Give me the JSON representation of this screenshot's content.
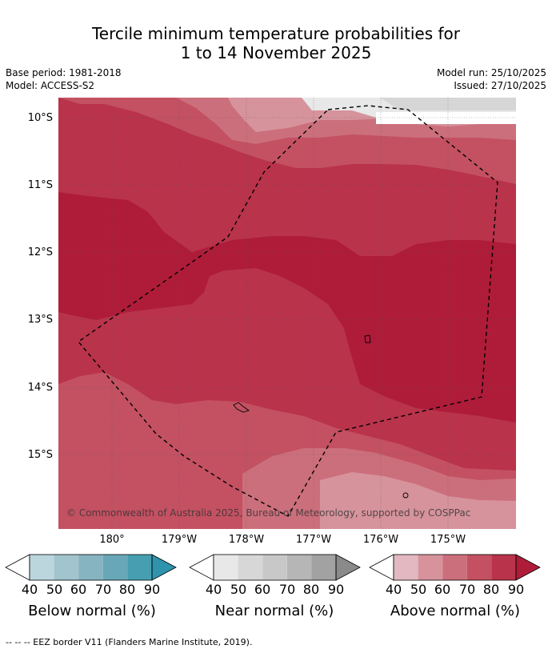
{
  "title": {
    "line1": "Tercile minimum temperature probabilities for",
    "line2": "1 to 14 November 2025"
  },
  "meta": {
    "base_period": "Base period: 1981-2018",
    "model": "Model: ACCESS-S2",
    "model_run": "Model run: 25/10/2025",
    "issued": "Issued: 27/10/2025"
  },
  "map": {
    "lat_labels": [
      "10°S",
      "11°S",
      "12°S",
      "13°S",
      "14°S",
      "15°S"
    ],
    "lon_labels": [
      "180°",
      "179°W",
      "178°W",
      "177°W",
      "176°W",
      "175°W"
    ],
    "copyright": "© Commonwealth of Australia 2025, Bureau of Meteorology, supported by COSPPac",
    "colors": {
      "above_40": "#e3b8c0",
      "above_50": "#d6939c",
      "above_60": "#cc6f7c",
      "above_70": "#c35162",
      "above_80": "#b9334b",
      "above_90": "#ae1c3a",
      "near_40": "#e8e8e8",
      "near_50": "#d6d6d6"
    }
  },
  "legends": [
    {
      "label": "Below normal (%)",
      "ticks": [
        "40",
        "50",
        "60",
        "70",
        "80",
        "90"
      ],
      "colors": [
        "#bcd6de",
        "#a2c4cd",
        "#86b4c1",
        "#68a7b8",
        "#469fb1",
        "#2f93ac"
      ]
    },
    {
      "label": "Near normal (%)",
      "ticks": [
        "40",
        "50",
        "60",
        "70",
        "80",
        "90"
      ],
      "colors": [
        "#e8e8e8",
        "#d7d7d7",
        "#c8c8c8",
        "#b6b6b6",
        "#a2a2a2",
        "#8a8a8a"
      ]
    },
    {
      "label": "Above normal (%)",
      "ticks": [
        "40",
        "50",
        "60",
        "70",
        "80",
        "90"
      ],
      "colors": [
        "#e3b8c0",
        "#d6939c",
        "#cc6f7c",
        "#c35162",
        "#b9334b",
        "#ae1c3a"
      ]
    }
  ],
  "footer": "--  --  -- EEZ border V11 (Flanders Marine Institute, 2019)."
}
